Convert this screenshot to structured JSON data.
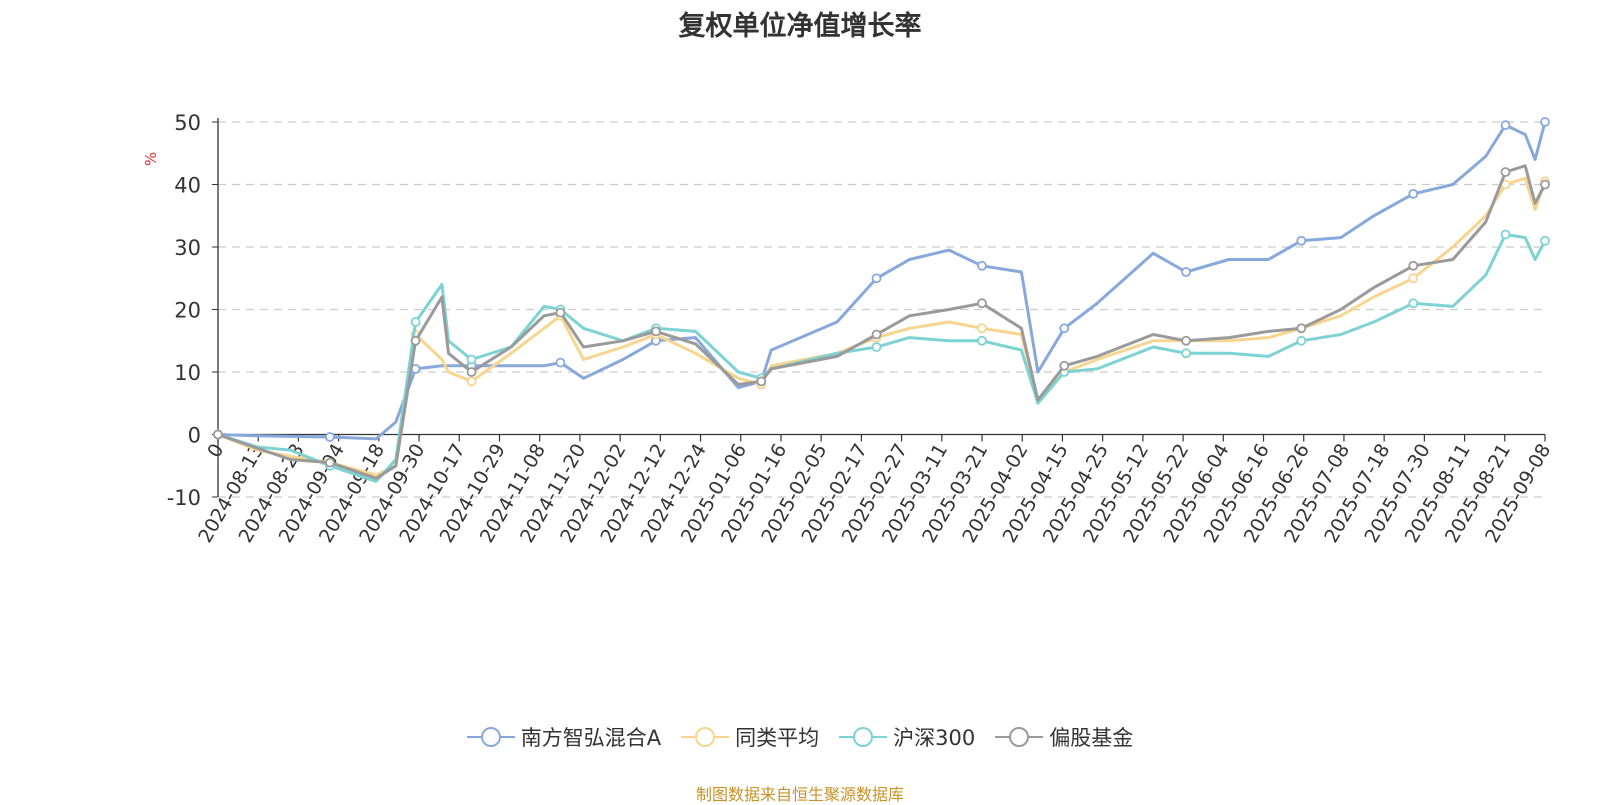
{
  "chart_data": {
    "type": "line",
    "title": "复权单位净值增长率",
    "ylabel": "%",
    "ylim": [
      -10,
      50
    ],
    "yticks": [
      -10,
      0,
      10,
      20,
      30,
      40,
      50
    ],
    "grid": true,
    "legend_position": "bottom",
    "x_ticks": [
      "0",
      "2024-08-13",
      "2024-08-23",
      "2024-09-04",
      "2024-09-18",
      "2024-09-30",
      "2024-10-17",
      "2024-10-29",
      "2024-11-08",
      "2024-11-20",
      "2024-12-02",
      "2024-12-12",
      "2024-12-24",
      "2025-01-06",
      "2025-01-16",
      "2025-02-05",
      "2025-02-17",
      "2025-02-27",
      "2025-03-11",
      "2025-03-21",
      "2025-04-02",
      "2025-04-15",
      "2025-04-25",
      "2025-05-12",
      "2025-05-22",
      "2025-06-04",
      "2025-06-16",
      "2025-06-26",
      "2025-07-08",
      "2025-07-18",
      "2025-07-30",
      "2025-08-11",
      "2025-08-21",
      "2025-09-08"
    ],
    "x": [
      "2024-08-01",
      "2024-08-13",
      "2024-08-23",
      "2024-09-04",
      "2024-09-18",
      "2024-09-24",
      "2024-09-30",
      "2024-10-08",
      "2024-10-10",
      "2024-10-17",
      "2024-10-29",
      "2024-11-08",
      "2024-11-13",
      "2024-11-20",
      "2024-12-02",
      "2024-12-12",
      "2024-12-24",
      "2025-01-06",
      "2025-01-13",
      "2025-01-16",
      "2025-02-05",
      "2025-02-17",
      "2025-02-27",
      "2025-03-11",
      "2025-03-21",
      "2025-04-02",
      "2025-04-07",
      "2025-04-15",
      "2025-04-25",
      "2025-05-12",
      "2025-05-22",
      "2025-06-04",
      "2025-06-16",
      "2025-06-26",
      "2025-07-08",
      "2025-07-18",
      "2025-07-30",
      "2025-08-11",
      "2025-08-21",
      "2025-08-27",
      "2025-09-02",
      "2025-09-05",
      "2025-09-08"
    ],
    "series": [
      {
        "name": "南方智弘混合A",
        "color": "#88a8dc",
        "values": [
          0,
          -0.2,
          -0.3,
          -0.4,
          -0.7,
          2,
          10.5,
          11,
          11,
          11,
          11,
          11,
          11.5,
          9,
          12,
          15,
          15.5,
          7.5,
          8.5,
          13.5,
          18,
          25,
          28,
          29.5,
          27,
          26,
          10,
          17,
          21,
          29,
          26,
          28,
          28,
          31,
          31.5,
          35,
          38.5,
          40,
          44.5,
          49.5,
          48,
          44,
          50
        ]
      },
      {
        "name": "同类平均",
        "color": "#f8d58e",
        "values": [
          0,
          -2.5,
          -3.5,
          -4.5,
          -6.5,
          -5,
          16,
          12,
          10,
          8.5,
          13,
          17,
          19,
          12,
          14,
          16,
          13,
          9,
          8,
          11,
          13,
          15.5,
          17,
          18,
          17,
          16,
          5.5,
          10,
          12,
          15,
          15,
          15,
          15.5,
          17,
          19,
          22,
          25,
          30,
          35,
          40,
          41,
          36,
          40.5
        ]
      },
      {
        "name": "沪深300",
        "color": "#7dd3d3",
        "values": [
          0,
          -2,
          -2.5,
          -5,
          -7.5,
          -4,
          18,
          24,
          15,
          12,
          14,
          20.5,
          20,
          17,
          15,
          17,
          16.5,
          10,
          9,
          10.5,
          13,
          14,
          15.5,
          15,
          15,
          13.5,
          5,
          10,
          10.5,
          14,
          13,
          13,
          12.5,
          15,
          16,
          18,
          21,
          20.5,
          25.5,
          32,
          31.5,
          28,
          31
        ]
      },
      {
        "name": "偏股基金",
        "color": "#9a9a9a",
        "values": [
          0,
          -2.2,
          -4,
          -4.5,
          -7,
          -5,
          15,
          22,
          13,
          10,
          14,
          19,
          19.5,
          14,
          15,
          16.5,
          14.5,
          8,
          8.5,
          10.5,
          12.5,
          16,
          19,
          20,
          21,
          17,
          5.5,
          11,
          12.5,
          16,
          15,
          15.5,
          16.5,
          17,
          20,
          23.5,
          27,
          28,
          34,
          42,
          43,
          37,
          40
        ]
      }
    ]
  },
  "legend": [
    "南方智弘混合A",
    "同类平均",
    "沪深300",
    "偏股基金"
  ],
  "source": "制图数据来自恒生聚源数据库"
}
